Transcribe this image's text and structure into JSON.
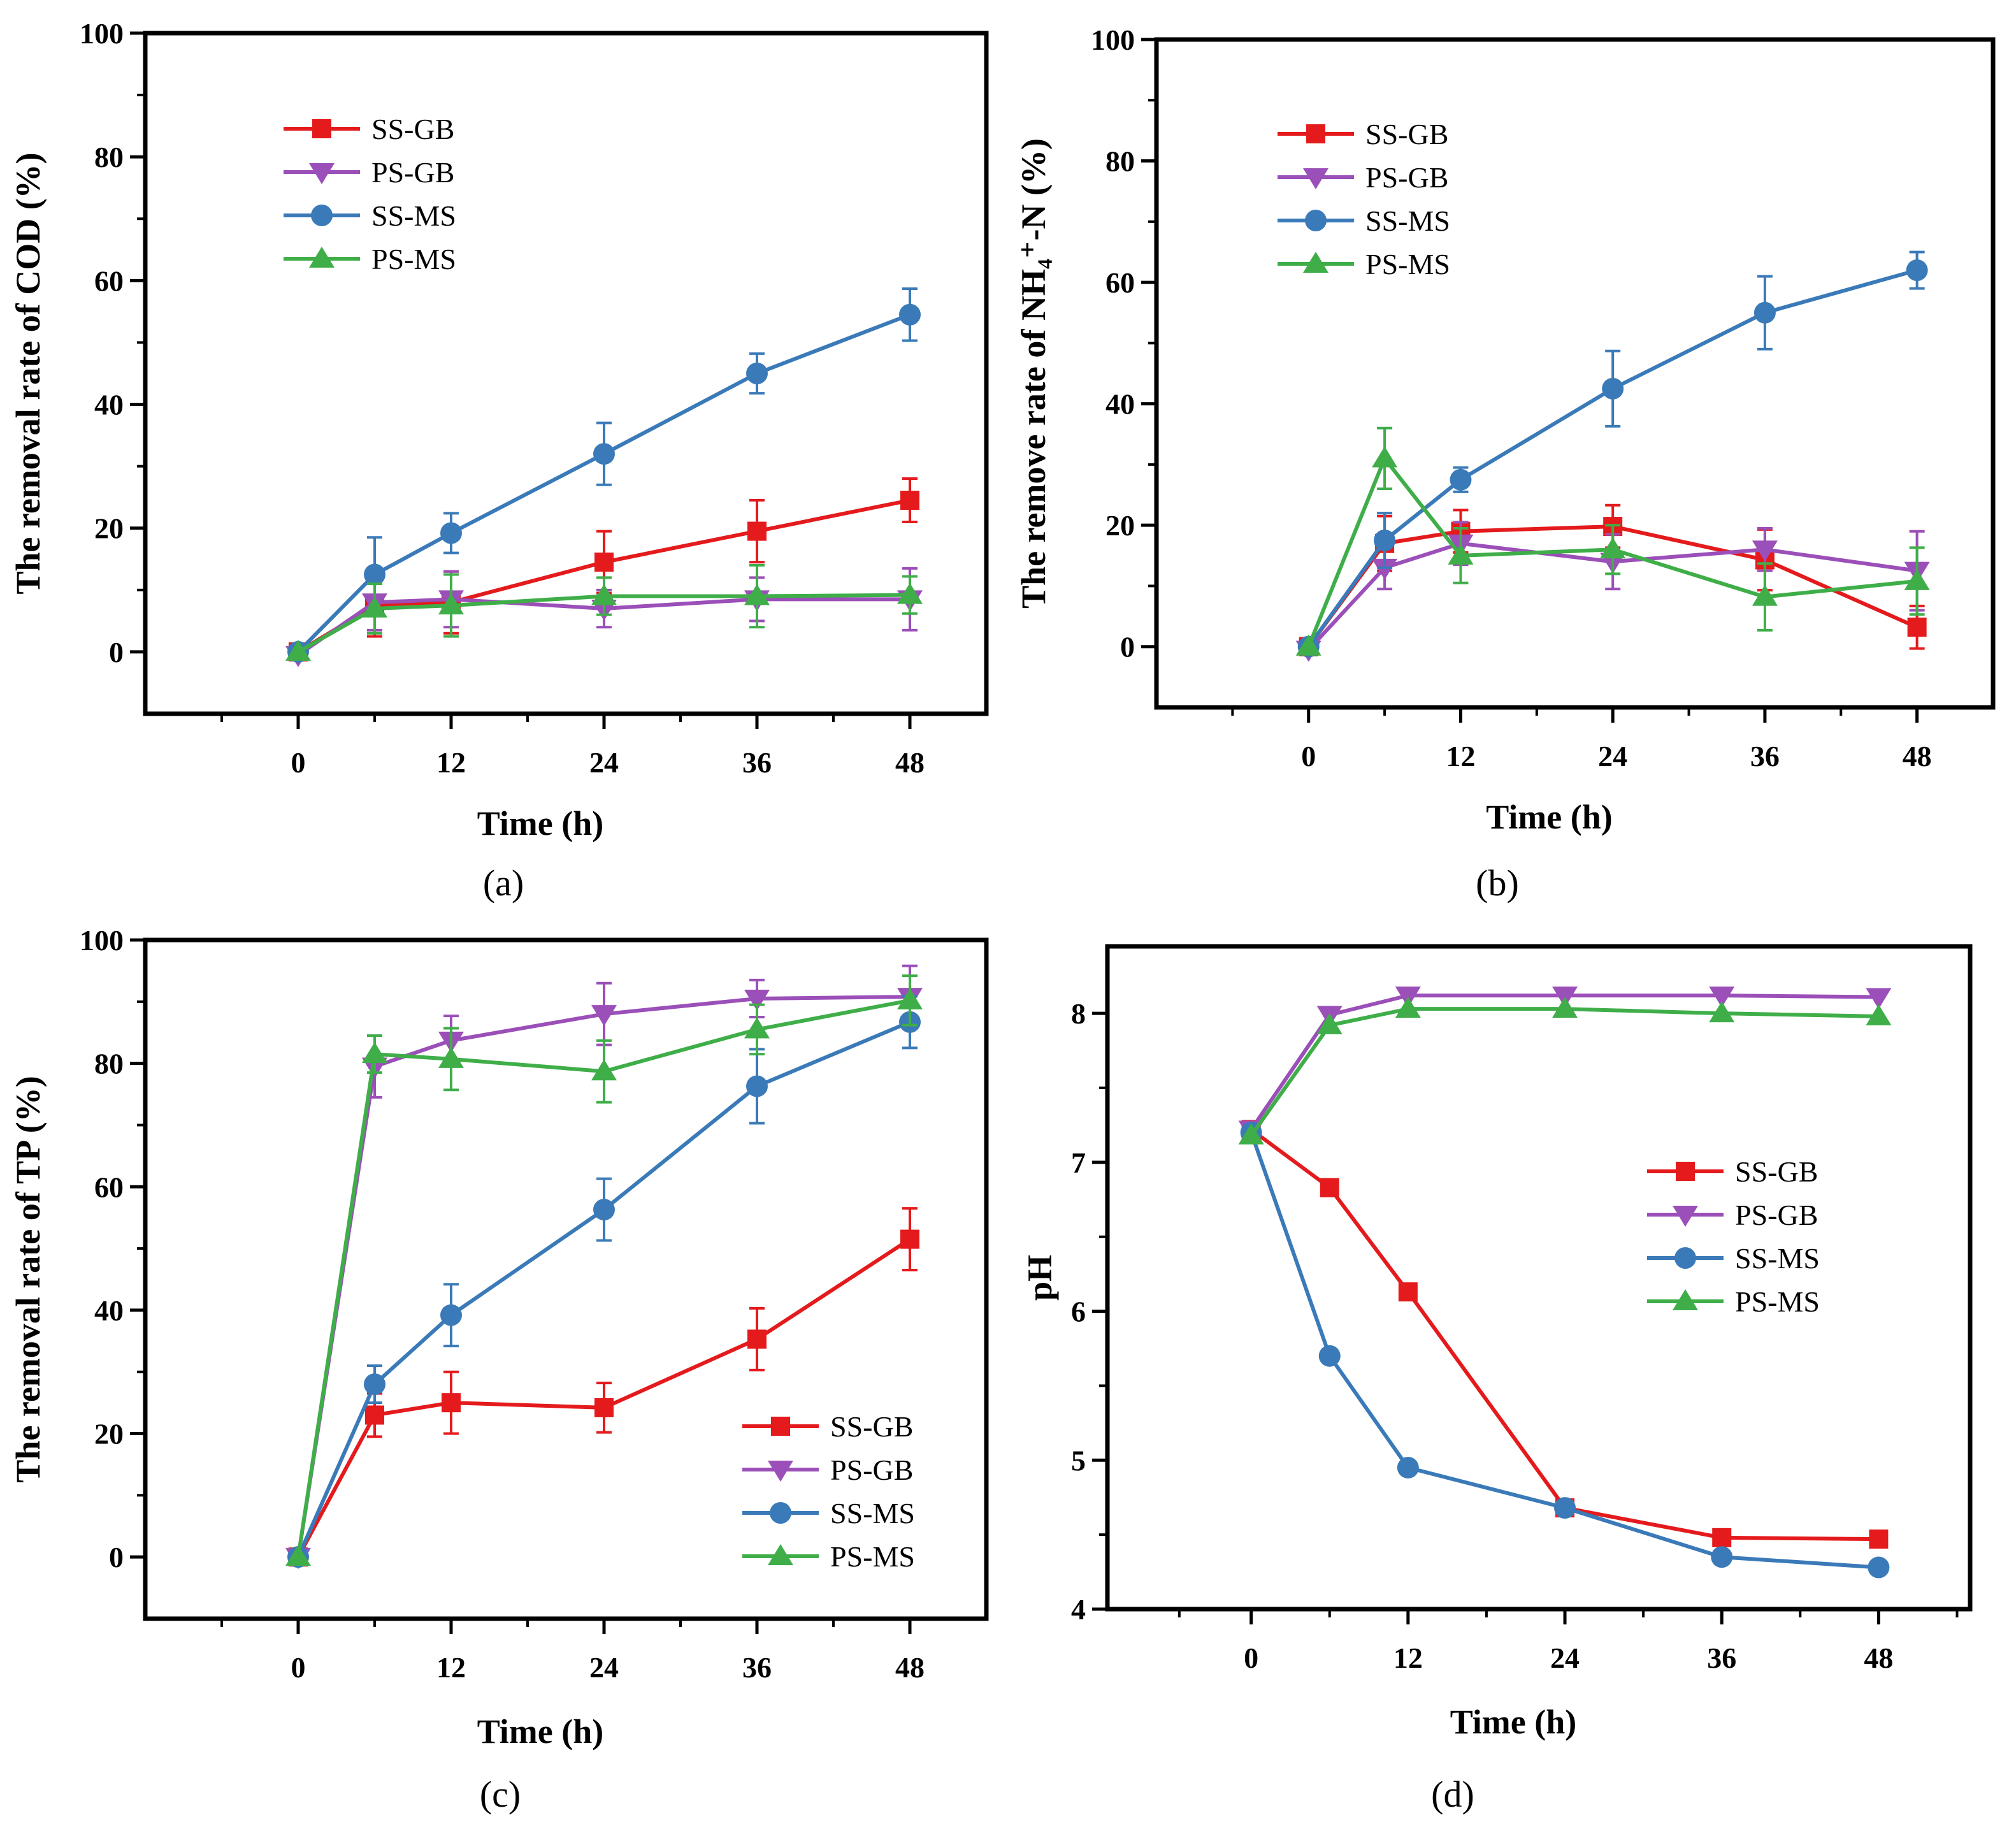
{
  "figure_title": "",
  "colors": {
    "SS-GB": "#e41a1c",
    "PS-GB": "#9b4fb8",
    "SS-MS": "#3a7ab8",
    "PS-MS": "#3fae49"
  },
  "chart_data": [
    {
      "id": "a",
      "type": "line",
      "panel_label": "(a)",
      "xlabel": "Time (h)",
      "ylabel": "The removal rate of COD (%)",
      "xlim": [
        -12,
        54
      ],
      "ylim": [
        -10,
        100
      ],
      "xticks": [
        0,
        12,
        24,
        36,
        48
      ],
      "xtick_labels": [
        "0",
        "12",
        "24",
        "36",
        "48"
      ],
      "yticks": [
        0,
        20,
        40,
        60,
        80,
        100
      ],
      "ytick_labels": [
        "0",
        "20",
        "40",
        "60",
        "80",
        "100"
      ],
      "legend_position": "top-left",
      "x": [
        0,
        6,
        12,
        24,
        36,
        48
      ],
      "series": [
        {
          "name": "SS-GB",
          "marker": "square",
          "values": [
            0,
            7.5,
            8,
            14.5,
            19.5,
            24.5
          ],
          "errors": [
            0,
            5,
            5,
            5,
            5,
            3.5
          ]
        },
        {
          "name": "PS-GB",
          "marker": "triangle-down",
          "values": [
            -0.5,
            8,
            8.5,
            7,
            8.5,
            8.5
          ],
          "errors": [
            0,
            4.5,
            4.5,
            3,
            3.5,
            5
          ]
        },
        {
          "name": "SS-MS",
          "marker": "circle",
          "values": [
            0,
            12.5,
            19.2,
            32,
            45,
            54.5
          ],
          "errors": [
            0,
            6,
            3.2,
            5,
            3.2,
            4.2
          ]
        },
        {
          "name": "PS-MS",
          "marker": "triangle-up",
          "values": [
            0,
            7,
            7.5,
            9,
            9,
            9.2
          ],
          "errors": [
            0,
            4,
            5,
            3,
            5,
            3
          ]
        }
      ]
    },
    {
      "id": "b",
      "type": "line",
      "panel_label": "(b)",
      "xlabel": "Time (h)",
      "ylabel": "The remove rate of NH₄⁺-N (%)",
      "xlim": [
        -12,
        54
      ],
      "ylim": [
        -10,
        100
      ],
      "xticks": [
        0,
        12,
        24,
        36,
        48
      ],
      "xtick_labels": [
        "0",
        "12",
        "24",
        "36",
        "48"
      ],
      "yticks": [
        0,
        20,
        40,
        60,
        80,
        100
      ],
      "ytick_labels": [
        "0",
        "20",
        "40",
        "60",
        "80",
        "100"
      ],
      "legend_position": "top-left",
      "x": [
        0,
        6,
        12,
        24,
        36,
        48
      ],
      "series": [
        {
          "name": "SS-GB",
          "marker": "square",
          "values": [
            0,
            17,
            19,
            19.8,
            14.3,
            3.2
          ],
          "errors": [
            0,
            4.5,
            3.5,
            3.5,
            5,
            3.5
          ]
        },
        {
          "name": "PS-GB",
          "marker": "triangle-down",
          "values": [
            -0.5,
            13,
            17,
            14,
            16,
            12.5
          ],
          "errors": [
            0,
            3.5,
            3.5,
            4.5,
            3.5,
            6.5
          ]
        },
        {
          "name": "SS-MS",
          "marker": "circle",
          "values": [
            0,
            17.5,
            27.5,
            42.5,
            55,
            62
          ],
          "errors": [
            0,
            4.5,
            2,
            6.2,
            6,
            3
          ]
        },
        {
          "name": "PS-MS",
          "marker": "triangle-up",
          "values": [
            0,
            31,
            15,
            16,
            8.2,
            10.8
          ],
          "errors": [
            0,
            5,
            4.5,
            4,
            5.5,
            5.5
          ]
        }
      ]
    },
    {
      "id": "c",
      "type": "line",
      "panel_label": "(c)",
      "xlabel": "Time (h)",
      "ylabel": "The removal rate of TP (%)",
      "xlim": [
        -12,
        54
      ],
      "ylim": [
        -10,
        100
      ],
      "xticks": [
        0,
        12,
        24,
        36,
        48
      ],
      "xtick_labels": [
        "0",
        "12",
        "24",
        "36",
        "48"
      ],
      "yticks": [
        0,
        20,
        40,
        60,
        80,
        100
      ],
      "ytick_labels": [
        "0",
        "20",
        "40",
        "60",
        "80",
        "100"
      ],
      "legend_position": "bottom-right",
      "x": [
        0,
        6,
        12,
        24,
        36,
        48
      ],
      "series": [
        {
          "name": "SS-GB",
          "marker": "square",
          "values": [
            0,
            23,
            25,
            24.2,
            35.3,
            51.5
          ],
          "errors": [
            0,
            3.5,
            5,
            4,
            5,
            5
          ]
        },
        {
          "name": "PS-GB",
          "marker": "triangle-down",
          "values": [
            0,
            79.5,
            83.7,
            88,
            90.5,
            90.8
          ],
          "errors": [
            0,
            5,
            4,
            5,
            3,
            5
          ]
        },
        {
          "name": "SS-MS",
          "marker": "circle",
          "values": [
            0,
            28,
            39.2,
            56.3,
            76.3,
            86.7
          ],
          "errors": [
            0,
            3,
            5,
            5,
            6,
            4.2
          ]
        },
        {
          "name": "PS-MS",
          "marker": "triangle-up",
          "values": [
            0,
            81.5,
            80.7,
            78.7,
            85.5,
            90.2
          ],
          "errors": [
            0,
            3,
            5,
            5,
            4,
            4
          ]
        }
      ]
    },
    {
      "id": "d",
      "type": "line",
      "panel_label": "(d)",
      "xlabel": "Time (h)",
      "ylabel": "pH",
      "xlim": [
        -11,
        55
      ],
      "ylim": [
        4,
        8.45
      ],
      "xticks": [
        0,
        12,
        24,
        36,
        48
      ],
      "xtick_labels": [
        "0",
        "12",
        "24",
        "36",
        "48"
      ],
      "yticks": [
        4,
        5,
        6,
        7,
        8
      ],
      "ytick_labels": [
        "4",
        "5",
        "6",
        "7",
        "8"
      ],
      "legend_position": "center-right",
      "x": [
        0,
        6,
        12,
        24,
        36,
        48
      ],
      "series": [
        {
          "name": "SS-GB",
          "marker": "square",
          "values": [
            7.22,
            6.83,
            6.13,
            4.68,
            4.48,
            4.47
          ]
        },
        {
          "name": "PS-GB",
          "marker": "triangle-down",
          "values": [
            7.22,
            7.99,
            8.12,
            8.12,
            8.12,
            8.11
          ]
        },
        {
          "name": "SS-MS",
          "marker": "circle",
          "values": [
            7.2,
            5.7,
            4.95,
            4.68,
            4.35,
            4.28
          ]
        },
        {
          "name": "PS-MS",
          "marker": "triangle-up",
          "values": [
            7.18,
            7.92,
            8.03,
            8.03,
            8.0,
            7.98
          ]
        }
      ]
    }
  ]
}
